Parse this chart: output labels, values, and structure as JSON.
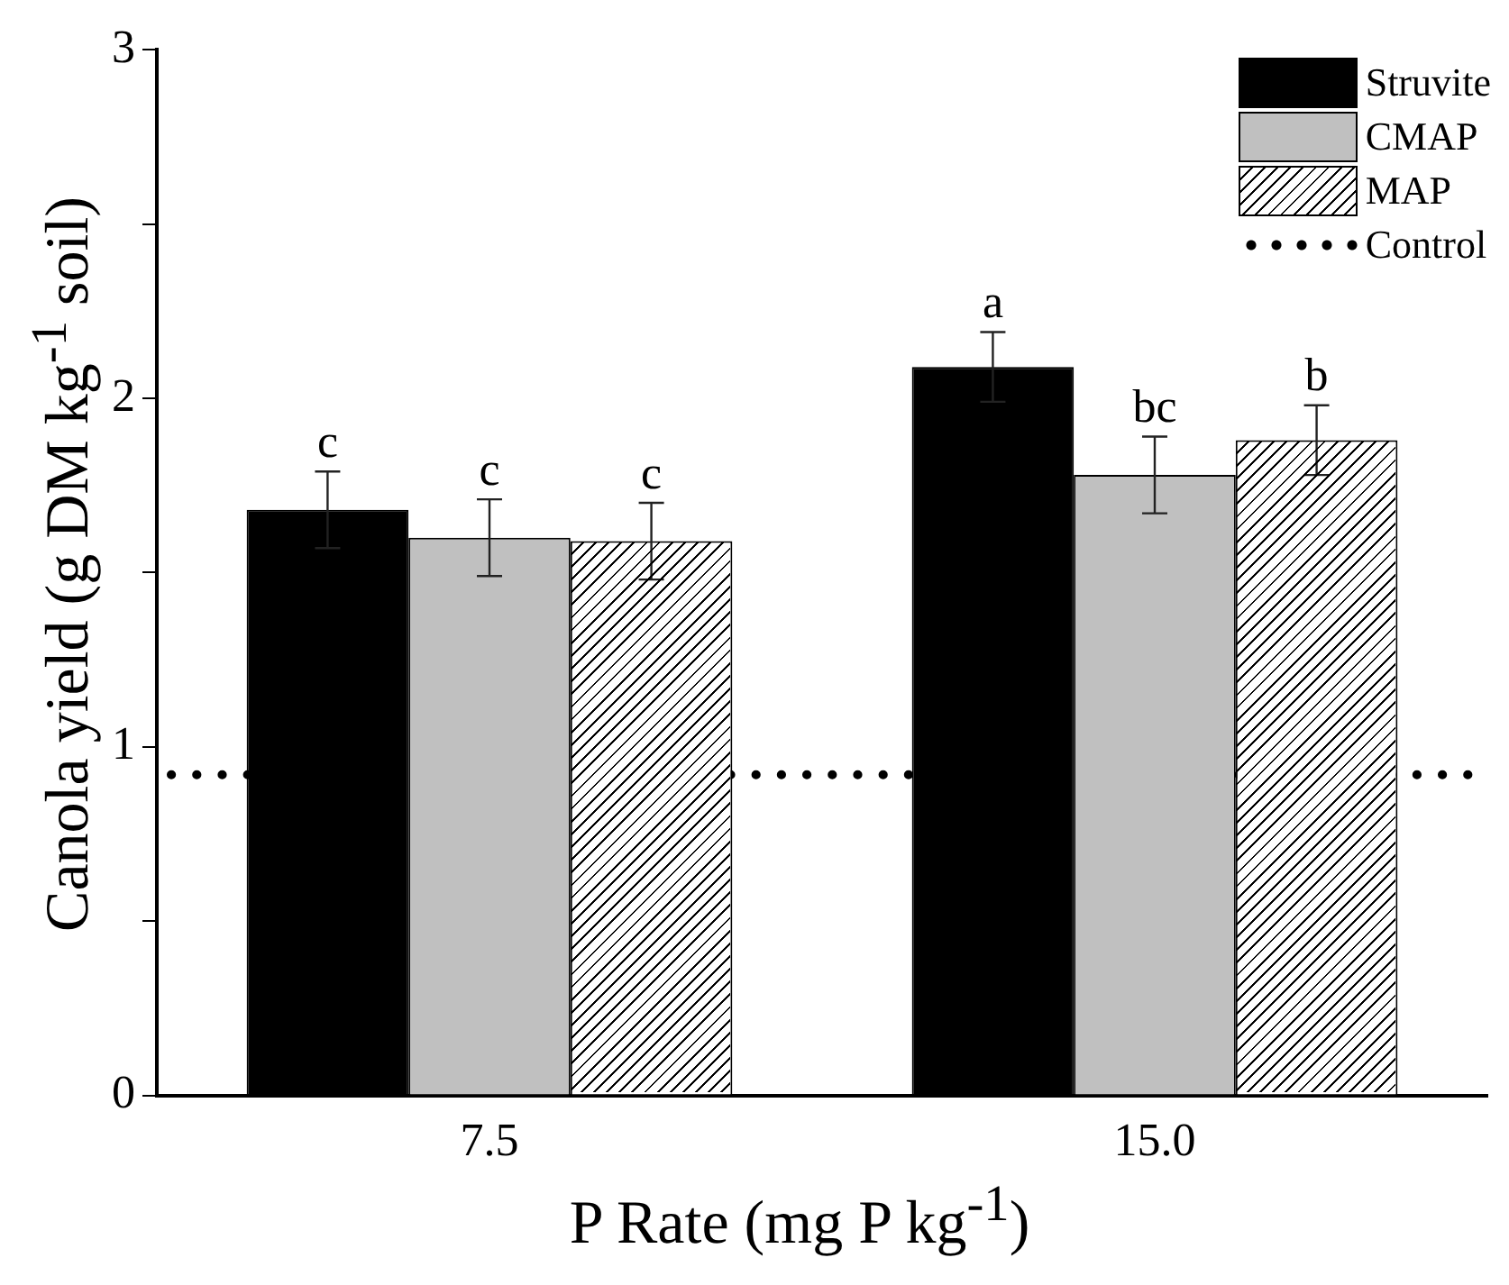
{
  "chart_data": {
    "type": "bar",
    "xlabel": "P Rate (mg P kg$^{-1}$)",
    "ylabel": "Canola yield (g DM kg$^{-1}$ soil)",
    "categories": [
      "7.5",
      "15.0"
    ],
    "series": [
      {
        "name": "Struvite",
        "color": "#000000",
        "values": [
          1.68,
          2.09
        ],
        "errors": [
          0.11,
          0.1
        ]
      },
      {
        "name": "CMAP",
        "color": "#c0c0c0",
        "values": [
          1.6,
          1.78
        ],
        "errors": [
          0.11,
          0.11
        ]
      },
      {
        "name": "MAP",
        "color": "#ffffff",
        "values": [
          1.59,
          1.88
        ],
        "errors": [
          0.11,
          0.1
        ]
      }
    ],
    "ylim": [
      0,
      3
    ],
    "yticks": [
      0,
      {
        "value": 0.5,
        "label": null
      },
      1,
      {
        "value": 1.5,
        "label": null
      },
      2,
      {
        "value": 2.5,
        "label": null
      },
      3
    ],
    "ref_lines": [
      {
        "axis": "y",
        "value": 0.92,
        "label": "Control",
        "line_style": "dotted",
        "color": "#000000"
      }
    ],
    "annotations": [
      "c",
      "c",
      "c",
      "a",
      "bc",
      "b"
    ],
    "legend": "top right",
    "grid": false
  }
}
